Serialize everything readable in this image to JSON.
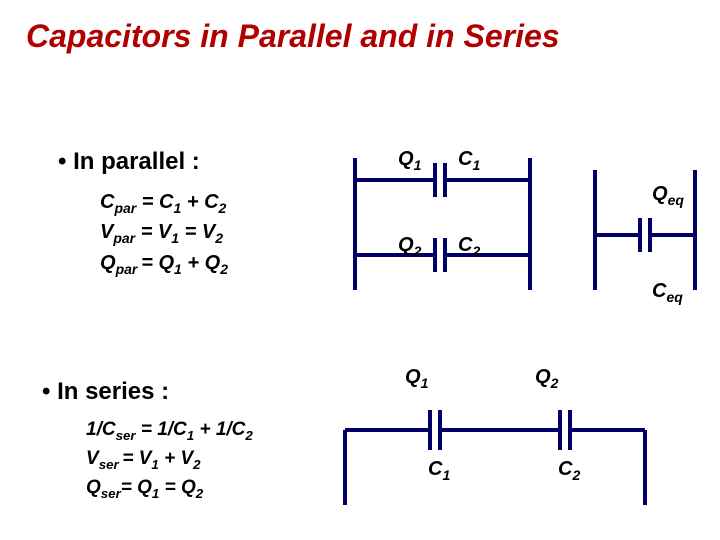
{
  "title_color": "#b00000",
  "title": "Capacitors in Parallel and in Series",
  "parallel": {
    "heading": "In parallel :",
    "eq1_html": "C<sub>par</sub> = C<sub>1</sub> + C<sub>2</sub>",
    "eq2_html": "V<sub>par</sub> = V<sub>1</sub> = V<sub>2</sub>",
    "eq3_html": "Q<sub>par </sub>= Q<sub>1</sub> + Q<sub>2</sub>",
    "Q1_html": "Q<sub>1</sub>",
    "C1_html": "C<sub>1</sub>",
    "Q2_html": "Q<sub>2</sub>",
    "C2_html": "C<sub>2</sub>",
    "Qeq_html": "Q<sub>eq</sub>",
    "Ceq_html": "C<sub>eq</sub>"
  },
  "series": {
    "heading": "In series :",
    "eq1_html": "1/C<sub>ser</sub> = 1/C<sub>1</sub> + 1/C<sub>2</sub>",
    "eq2_html": "V<sub>ser </sub>= V<sub>1</sub> + V<sub>2</sub>",
    "eq3_html": "Q<sub>ser</sub>= Q<sub>1</sub> = Q<sub>2</sub>",
    "Q1_html": "Q<sub>1</sub>",
    "C1_html": "C<sub>1</sub>",
    "Q2_html": "Q<sub>2</sub>",
    "C2_html": "C<sub>2</sub>"
  },
  "style": {
    "stroke": "#000066",
    "stroke_width": 4,
    "plate_height": 34,
    "plate_gap": 10
  }
}
